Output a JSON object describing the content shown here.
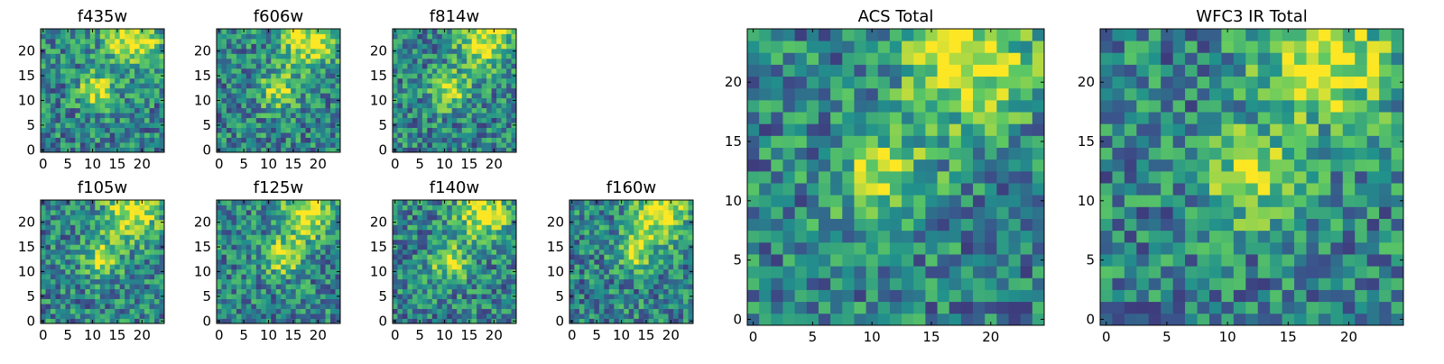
{
  "figure": {
    "colormap": "viridis",
    "palette": [
      "#440154",
      "#3b528b",
      "#21918c",
      "#5ec962",
      "#fde725"
    ]
  },
  "chart_data": [
    {
      "id": "f435w",
      "type": "heatmap",
      "title": "f435w",
      "xticks": [
        0,
        5,
        10,
        15,
        20
      ],
      "yticks": [
        0,
        5,
        10,
        15,
        20
      ],
      "xlim": [
        -0.5,
        24.5
      ],
      "ylim": [
        -0.5,
        24.5
      ],
      "grid_size": [
        25,
        25
      ],
      "bright_source": [
        11,
        12
      ],
      "seed": 11
    },
    {
      "id": "f606w",
      "type": "heatmap",
      "title": "f606w",
      "xticks": [
        0,
        5,
        10,
        15,
        20
      ],
      "yticks": [
        0,
        5,
        10,
        15,
        20
      ],
      "xlim": [
        -0.5,
        24.5
      ],
      "ylim": [
        -0.5,
        24.5
      ],
      "grid_size": [
        25,
        25
      ],
      "bright_source": [
        12,
        12
      ],
      "seed": 23
    },
    {
      "id": "f814w",
      "type": "heatmap",
      "title": "f814w",
      "xticks": [
        0,
        5,
        10,
        15,
        20
      ],
      "yticks": [
        0,
        5,
        10,
        15,
        20
      ],
      "xlim": [
        -0.5,
        24.5
      ],
      "ylim": [
        -0.5,
        24.5
      ],
      "grid_size": [
        25,
        25
      ],
      "bright_source": [
        11,
        12
      ],
      "seed": 37
    },
    {
      "id": "f105w",
      "type": "heatmap",
      "title": "f105w",
      "xticks": [
        0,
        5,
        10,
        15,
        20
      ],
      "yticks": [
        0,
        5,
        10,
        15,
        20
      ],
      "xlim": [
        -0.5,
        24.5
      ],
      "ylim": [
        -0.5,
        24.5
      ],
      "grid_size": [
        25,
        25
      ],
      "bright_source": [
        12,
        13
      ],
      "seed": 41
    },
    {
      "id": "f125w",
      "type": "heatmap",
      "title": "f125w",
      "xticks": [
        0,
        5,
        10,
        15,
        20
      ],
      "yticks": [
        0,
        5,
        10,
        15,
        20
      ],
      "xlim": [
        -0.5,
        24.5
      ],
      "ylim": [
        -0.5,
        24.5
      ],
      "grid_size": [
        25,
        25
      ],
      "bright_source": [
        13,
        13
      ],
      "seed": 53
    },
    {
      "id": "f140w",
      "type": "heatmap",
      "title": "f140w",
      "xticks": [
        0,
        5,
        10,
        15,
        20
      ],
      "yticks": [
        0,
        5,
        10,
        15,
        20
      ],
      "xlim": [
        -0.5,
        24.5
      ],
      "ylim": [
        -0.5,
        24.5
      ],
      "grid_size": [
        25,
        25
      ],
      "bright_source": [
        11,
        12
      ],
      "seed": 67
    },
    {
      "id": "f160w",
      "type": "heatmap",
      "title": "f160w",
      "xticks": [
        0,
        5,
        10,
        15,
        20
      ],
      "yticks": [
        0,
        5,
        10,
        15,
        20
      ],
      "xlim": [
        -0.5,
        24.5
      ],
      "ylim": [
        -0.5,
        24.5
      ],
      "grid_size": [
        25,
        25
      ],
      "bright_source": [
        13,
        14
      ],
      "seed": 79
    },
    {
      "id": "acs-total",
      "type": "heatmap",
      "title": "ACS Total",
      "xticks": [
        0,
        5,
        10,
        15,
        20
      ],
      "yticks": [
        0,
        5,
        10,
        15,
        20
      ],
      "xlim": [
        -0.5,
        24.5
      ],
      "ylim": [
        -0.5,
        24.5
      ],
      "grid_size": [
        25,
        25
      ],
      "bright_source": [
        11,
        12
      ],
      "seed": 83
    },
    {
      "id": "wfc3-ir-total",
      "type": "heatmap",
      "title": "WFC3 IR Total",
      "xticks": [
        0,
        5,
        10,
        15,
        20
      ],
      "yticks": [
        0,
        5,
        10,
        15,
        20
      ],
      "xlim": [
        -0.5,
        24.5
      ],
      "ylim": [
        -0.5,
        24.5
      ],
      "grid_size": [
        25,
        25
      ],
      "bright_source": [
        12,
        12
      ],
      "seed": 97
    }
  ]
}
